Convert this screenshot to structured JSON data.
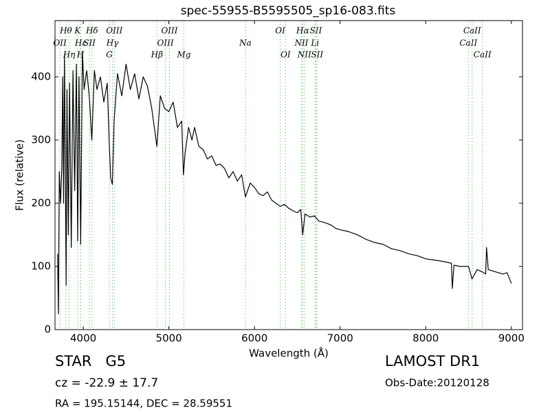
{
  "chart_data": {
    "type": "line",
    "title": "spec-55955-B5595505_sp16-083.fits",
    "xlabel": "Wavelength (Å)",
    "ylabel": "Flux (relative)",
    "xlim": [
      3670,
      9130
    ],
    "ylim": [
      0,
      489
    ],
    "xticks": [
      4000,
      5000,
      6000,
      7000,
      8000,
      9000
    ],
    "yticks": [
      0,
      100,
      200,
      300,
      400
    ],
    "color": "#000000",
    "line_color": "#66cc66",
    "x": [
      3700,
      3710,
      3720,
      3735,
      3750,
      3760,
      3770,
      3780,
      3790,
      3800,
      3810,
      3825,
      3840,
      3860,
      3880,
      3900,
      3920,
      3935,
      3950,
      3970,
      3990,
      4010,
      4040,
      4070,
      4100,
      4130,
      4160,
      4200,
      4240,
      4280,
      4305,
      4320,
      4340,
      4360,
      4400,
      4450,
      4500,
      4550,
      4600,
      4650,
      4700,
      4750,
      4800,
      4860,
      4900,
      4950,
      5000,
      5050,
      5100,
      5150,
      5170,
      5190,
      5230,
      5270,
      5300,
      5350,
      5400,
      5450,
      5500,
      5550,
      5600,
      5650,
      5700,
      5750,
      5800,
      5850,
      5894,
      5950,
      6000,
      6050,
      6100,
      6150,
      6200,
      6250,
      6300,
      6350,
      6400,
      6450,
      6500,
      6540,
      6563,
      6590,
      6650,
      6700,
      6750,
      6800,
      6850,
      6900,
      6950,
      7000,
      7100,
      7200,
      7300,
      7400,
      7500,
      7600,
      7700,
      7800,
      7900,
      8000,
      8100,
      8200,
      8300,
      8310,
      8330,
      8400,
      8500,
      8540,
      8600,
      8650,
      8700,
      8710,
      8730,
      8800,
      8900,
      8950,
      9000
    ],
    "values": [
      120,
      25,
      250,
      200,
      260,
      400,
      200,
      435,
      260,
      70,
      380,
      150,
      390,
      130,
      410,
      220,
      420,
      140,
      400,
      135,
      440,
      380,
      410,
      370,
      300,
      410,
      380,
      400,
      360,
      390,
      290,
      240,
      230,
      330,
      405,
      370,
      420,
      380,
      405,
      365,
      400,
      385,
      350,
      290,
      370,
      350,
      345,
      360,
      320,
      330,
      245,
      280,
      320,
      300,
      320,
      290,
      285,
      270,
      275,
      260,
      262,
      255,
      240,
      250,
      235,
      245,
      210,
      232,
      225,
      215,
      212,
      218,
      205,
      200,
      195,
      198,
      192,
      188,
      185,
      190,
      150,
      183,
      178,
      180,
      172,
      170,
      168,
      165,
      160,
      158,
      155,
      150,
      143,
      138,
      135,
      128,
      125,
      120,
      117,
      112,
      110,
      108,
      105,
      65,
      102,
      100,
      100,
      80,
      95,
      92,
      88,
      130,
      95,
      92,
      88,
      90,
      73
    ],
    "lines": [
      {
        "name": "OII",
        "wavelength": 3727
      },
      {
        "name": "Hθ",
        "wavelength": 3798
      },
      {
        "name": "Hη",
        "wavelength": 3835
      },
      {
        "name": "K",
        "wavelength": 3934
      },
      {
        "name": "H",
        "wavelength": 3968
      },
      {
        "name": "Hε",
        "wavelength": 3970
      },
      {
        "name": "SII",
        "wavelength": 4072
      },
      {
        "name": "Hδ",
        "wavelength": 4102
      },
      {
        "name": "G",
        "wavelength": 4305
      },
      {
        "name": "Hγ",
        "wavelength": 4341
      },
      {
        "name": "OIII",
        "wavelength": 4363
      },
      {
        "name": "Hβ",
        "wavelength": 4861
      },
      {
        "name": "OIII",
        "wavelength": 4959
      },
      {
        "name": "OIII",
        "wavelength": 5007
      },
      {
        "name": "Mg",
        "wavelength": 5175
      },
      {
        "name": "Na",
        "wavelength": 5894
      },
      {
        "name": "OI",
        "wavelength": 6300
      },
      {
        "name": "OI",
        "wavelength": 6363
      },
      {
        "name": "NII",
        "wavelength": 6548
      },
      {
        "name": "Hα",
        "wavelength": 6563
      },
      {
        "name": "NII",
        "wavelength": 6583
      },
      {
        "name": "Li",
        "wavelength": 6707
      },
      {
        "name": "SII",
        "wavelength": 6716
      },
      {
        "name": "SII",
        "wavelength": 6731
      },
      {
        "name": "CaII",
        "wavelength": 8498
      },
      {
        "name": "CaII",
        "wavelength": 8542
      },
      {
        "name": "CaII",
        "wavelength": 8662
      }
    ]
  },
  "footer": {
    "object": "STAR   G5",
    "cz": "cz = -22.9 ± 17.7",
    "coords": "RA = 195.15144, DEC = 28.59551",
    "release": "LAMOST DR1",
    "obs_date": "Obs-Date:20120128"
  }
}
